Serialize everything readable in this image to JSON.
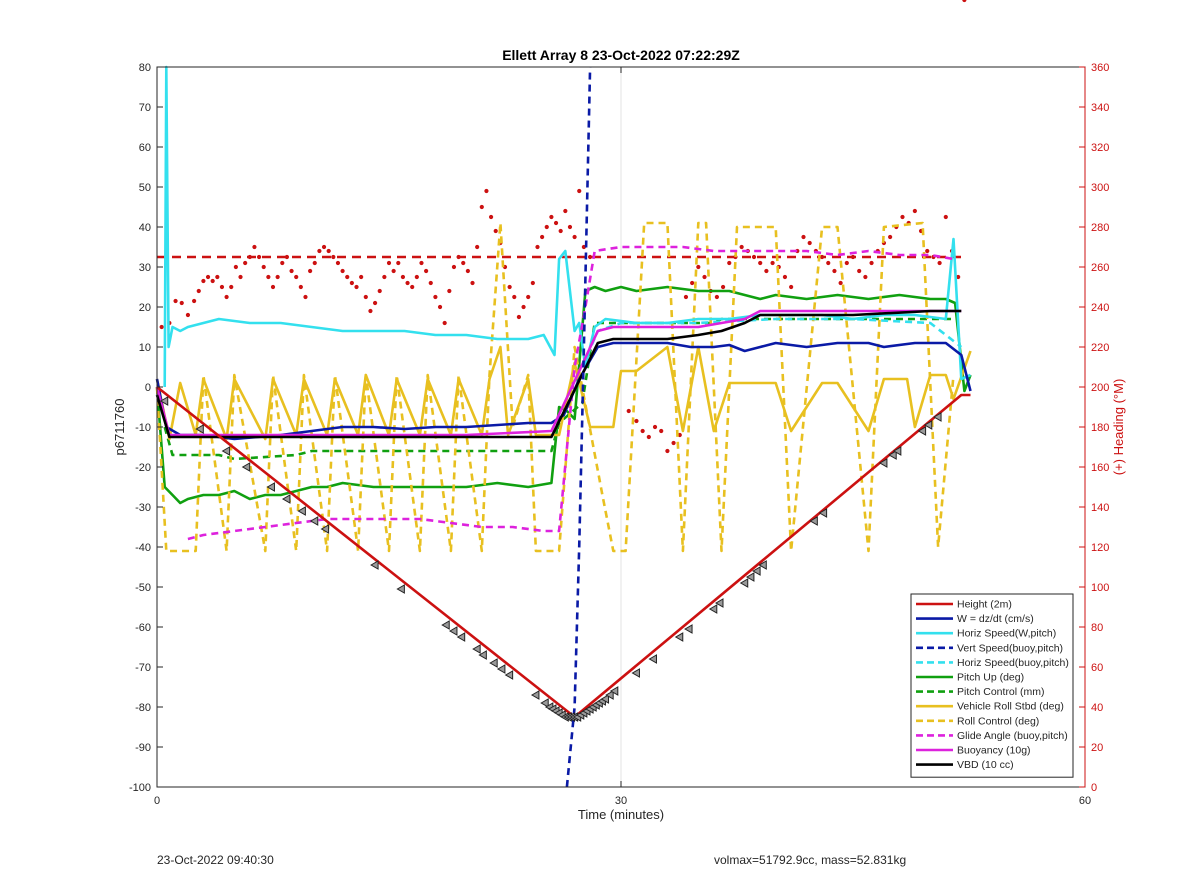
{
  "chart_data": {
    "type": "line",
    "title": "Ellett Array 8 23-Oct-2022 07:22:29Z",
    "xlabel": "Time (minutes)",
    "ylabel": "p6711760",
    "ylabel_right": "(+) Heading (°M)",
    "xlim": [
      0,
      60
    ],
    "ylim": [
      -100,
      80
    ],
    "ylim_right": [
      0,
      360
    ],
    "x_ticks": [
      0,
      30,
      60
    ],
    "y_ticks": [
      -100,
      -90,
      -80,
      -70,
      -60,
      -50,
      -40,
      -30,
      -20,
      -10,
      0,
      10,
      20,
      30,
      40,
      50,
      60,
      70,
      80
    ],
    "y_ticks_right": [
      0,
      20,
      40,
      60,
      80,
      100,
      120,
      140,
      160,
      180,
      200,
      220,
      240,
      260,
      280,
      300,
      320,
      340,
      360
    ],
    "grid": "x-only",
    "legend_position": "bottom-right",
    "series": [
      {
        "name": "Height (2m)",
        "color": "#cc1111",
        "style": "solid",
        "x": [
          0,
          27,
          52,
          52.6
        ],
        "y": [
          0,
          -82.5,
          -2,
          -2
        ]
      },
      {
        "name": "W = dz/dt (cm/s)",
        "color": "#0a1aa6",
        "style": "solid",
        "x": [
          0,
          0.6,
          1.5,
          3,
          5,
          8,
          10,
          12,
          14,
          16,
          18,
          20,
          22,
          24,
          25.5,
          26.3,
          27.3,
          28.5,
          29.5,
          31,
          33,
          34.5,
          36,
          37,
          38,
          39,
          40,
          42,
          44,
          46,
          47,
          49,
          51,
          52,
          52.6
        ],
        "y": [
          2,
          -10,
          -12,
          -12,
          -13,
          -12,
          -11,
          -10,
          -10,
          -10.5,
          -10,
          -10,
          -9.5,
          -9,
          -9,
          -7,
          2,
          10,
          11,
          11,
          11,
          10,
          10,
          10.5,
          9,
          10,
          11,
          10,
          11,
          11,
          10,
          11,
          11,
          8,
          -1
        ]
      },
      {
        "name": "Horiz Speed(W,pitch)",
        "color": "#33e0ee",
        "style": "solid",
        "x": [
          0.5,
          0.6,
          0.75,
          1,
          1.5,
          2,
          3,
          4,
          6,
          8,
          10,
          12,
          14,
          16,
          18,
          20,
          22,
          24,
          25,
          25.7,
          26,
          26.4,
          27,
          27.3,
          27.7,
          28.3,
          29,
          31,
          33,
          35,
          37,
          39,
          41,
          43,
          45,
          47,
          49,
          51,
          51.5,
          52,
          52.6
        ],
        "y": [
          0,
          80,
          10,
          15,
          14,
          15,
          16,
          17,
          16,
          16,
          15,
          14,
          14,
          14,
          13,
          13,
          12,
          12,
          13,
          8,
          32,
          34,
          14,
          16,
          5,
          15,
          17,
          16,
          16,
          17,
          17,
          18,
          18,
          18,
          17,
          18,
          18,
          17,
          37,
          2,
          3
        ]
      },
      {
        "name": "Vert Speed(buoy,pitch)",
        "color": "#0a1aa6",
        "style": "dashed",
        "x": [
          26.5,
          27,
          27.3,
          27.6,
          28
        ],
        "y": [
          -100,
          -80,
          -40,
          10,
          80
        ]
      },
      {
        "name": "Horiz Speed(buoy,pitch)",
        "color": "#33e0ee",
        "style": "dashed",
        "x": [
          27.5,
          28.5,
          30,
          35,
          40,
          45,
          50,
          52
        ],
        "y": [
          5,
          14,
          16,
          16,
          17,
          17,
          16,
          10
        ]
      },
      {
        "name": "Pitch Up (deg)",
        "color": "#10a010",
        "style": "solid",
        "x": [
          0,
          0.5,
          1,
          1.5,
          2,
          3,
          4,
          5,
          6,
          7,
          8,
          9,
          10,
          11,
          12,
          14,
          16,
          18,
          20,
          22,
          24,
          25.5,
          26,
          26.5,
          27,
          27.7,
          28.3,
          29,
          30,
          31,
          33,
          35,
          37,
          38,
          39,
          40,
          42,
          44,
          46,
          48,
          50,
          51,
          51.6,
          52.2,
          52.6
        ],
        "y": [
          0,
          -25,
          -27,
          -29,
          -28,
          -27,
          -27,
          -26,
          -28,
          -27,
          -27,
          -26,
          -25,
          -25,
          -24,
          -25,
          -25,
          -25,
          -25,
          -24,
          -25,
          -24,
          -5,
          -6,
          -8,
          24,
          25,
          24,
          25,
          24,
          25,
          24,
          24,
          23,
          22,
          23,
          22,
          23,
          22,
          23,
          22,
          22,
          21,
          -1,
          3
        ]
      },
      {
        "name": "Pitch Control (mm)",
        "color": "#10a010",
        "style": "dashed",
        "x": [
          0.5,
          1,
          4,
          5,
          9,
          10,
          25.5,
          26,
          27.5,
          28.3,
          36,
          36.5,
          51.5
        ],
        "y": [
          -10,
          -17,
          -17,
          -18,
          -17,
          -16,
          -16,
          -9,
          -4,
          16,
          16,
          17,
          17
        ]
      },
      {
        "name": "Vehicle Roll Stbd (deg)",
        "color": "#e8c020",
        "style": "solid",
        "x": [
          0,
          0.8,
          1.5,
          2.5,
          3,
          4.5,
          5,
          7,
          7.5,
          9,
          9.5,
          11,
          11.5,
          13,
          13.5,
          15,
          15.5,
          17,
          17.5,
          19,
          19.5,
          21,
          21.5,
          22.2,
          22.7,
          24,
          24.5,
          26,
          27,
          28,
          29.5,
          30,
          31,
          33,
          34,
          35,
          36,
          37,
          38,
          40,
          41,
          43,
          44,
          46,
          47,
          48.5,
          49,
          50,
          51,
          51.5,
          52.6
        ],
        "y": [
          2,
          -13,
          1,
          -12,
          2,
          -13,
          2,
          -13,
          2,
          -12,
          2,
          -12,
          2,
          -12,
          3,
          -12,
          2,
          -12,
          2,
          -12,
          2,
          -12,
          2,
          10,
          -12,
          2,
          -12,
          -12,
          6,
          -10,
          -10,
          4,
          4,
          10,
          -11,
          10,
          -11,
          1,
          1,
          1,
          -11,
          1,
          1,
          -11,
          2,
          2,
          -10,
          3,
          3,
          -3,
          9
        ]
      },
      {
        "name": "Roll Control (deg)",
        "color": "#e8c020",
        "style": "dashed",
        "x": [
          0,
          0.6,
          0.9,
          2.5,
          3,
          4.5,
          5,
          7,
          7.5,
          9,
          9.5,
          11,
          11.5,
          13,
          13.5,
          15,
          15.5,
          17,
          17.5,
          19,
          19.5,
          21,
          21.5,
          22.2,
          23,
          24,
          24.5,
          26,
          27,
          28.8,
          29.5,
          30.3,
          31.5,
          33,
          34,
          35,
          35.5,
          36.5,
          37.5,
          40,
          41,
          43,
          44,
          46,
          47,
          49.5,
          50.5,
          51.5
        ],
        "y": [
          0,
          -41,
          -41,
          -41,
          3,
          -41,
          3,
          -41,
          3,
          -41,
          3,
          -41,
          3,
          -41,
          3,
          -41,
          3,
          -41,
          3,
          -41,
          3,
          -41,
          3,
          41,
          -10,
          3,
          -41,
          -41,
          10,
          -27,
          -41,
          -41,
          41,
          41,
          -41,
          41,
          41,
          -41,
          40,
          40,
          -41,
          40,
          40,
          -41,
          40,
          41,
          -40,
          3
        ]
      },
      {
        "name": "Glide Angle (buoy,pitch)",
        "color": "#dd22dd",
        "style": "dashed",
        "x": [
          2,
          3,
          5,
          7,
          9,
          11,
          13,
          15,
          17,
          19,
          21,
          23,
          25,
          26,
          27,
          27.7,
          28.3,
          30,
          32,
          34,
          36,
          38,
          40,
          42,
          44,
          46,
          48,
          50,
          51.5
        ],
        "y": [
          -38,
          -37,
          -36,
          -35,
          -34,
          -33,
          -33,
          -33,
          -33,
          -34,
          -35,
          -35,
          -36,
          -36,
          5,
          20,
          34,
          35,
          35,
          35,
          34,
          34,
          34,
          34,
          33,
          34,
          33,
          33,
          32
        ]
      },
      {
        "name": "Buoyancy (10g)",
        "color": "#dd22dd",
        "style": "solid",
        "x": [
          0,
          0.8,
          10,
          20,
          25.5,
          28.5,
          29.5,
          33,
          35,
          36.5,
          38,
          39,
          41,
          45,
          50,
          52
        ],
        "y": [
          0,
          -12,
          -12,
          -12,
          -11,
          14,
          15,
          15,
          15,
          16,
          17,
          19,
          19,
          19,
          19,
          19
        ]
      },
      {
        "name": "VBD (10 cc)",
        "color": "#000000",
        "style": "solid",
        "x": [
          0,
          0.8,
          25.5,
          28.5,
          29.5,
          33,
          35,
          36.5,
          38,
          39,
          41,
          45,
          50,
          52
        ],
        "y": [
          -2,
          -12.5,
          -12.5,
          11,
          12,
          12,
          13,
          14,
          16,
          18,
          18,
          18,
          19,
          19
        ]
      }
    ],
    "heading_reference": {
      "y_right": 265,
      "color": "#cc1111",
      "style": "dashed"
    },
    "heading_points": {
      "color": "#cc1111",
      "x": [
        0.3,
        0.8,
        1.2,
        1.6,
        2.0,
        2.4,
        2.7,
        3.0,
        3.3,
        3.6,
        3.9,
        4.2,
        4.5,
        4.8,
        5.1,
        5.4,
        5.7,
        6.0,
        6.3,
        6.6,
        6.9,
        7.2,
        7.5,
        7.8,
        8.1,
        8.4,
        8.7,
        9.0,
        9.3,
        9.6,
        9.9,
        10.2,
        10.5,
        10.8,
        11.1,
        11.4,
        11.7,
        12.0,
        12.3,
        12.6,
        12.9,
        13.2,
        13.5,
        13.8,
        14.1,
        14.4,
        14.7,
        15.0,
        15.3,
        15.6,
        15.9,
        16.2,
        16.5,
        16.8,
        17.1,
        17.4,
        17.7,
        18.0,
        18.3,
        18.6,
        18.9,
        19.2,
        19.5,
        19.8,
        20.1,
        20.4,
        20.7,
        21.0,
        21.3,
        21.6,
        21.9,
        22.2,
        22.5,
        22.8,
        23.1,
        23.4,
        23.7,
        24.0,
        24.3,
        24.6,
        24.9,
        25.2,
        25.5,
        25.8,
        26.1,
        26.4,
        26.7,
        27.0,
        27.3,
        27.6,
        28.0,
        30.5,
        31.0,
        31.4,
        31.8,
        32.2,
        32.6,
        33.0,
        33.4,
        33.8,
        34.2,
        34.6,
        35.0,
        35.4,
        35.8,
        36.2,
        36.6,
        37.0,
        37.4,
        37.8,
        38.2,
        38.6,
        39.0,
        39.4,
        39.8,
        40.2,
        40.6,
        41.0,
        41.4,
        41.8,
        42.2,
        42.6,
        43.0,
        43.4,
        43.8,
        44.2,
        44.6,
        45.0,
        45.4,
        45.8,
        46.2,
        46.6,
        47.0,
        47.4,
        47.8,
        48.2,
        48.6,
        49.0,
        49.4,
        49.8,
        50.2,
        50.6,
        51.0,
        51.4,
        51.8,
        52.2
      ],
      "y_right": [
        230,
        232,
        243,
        242,
        236,
        243,
        248,
        253,
        255,
        253,
        255,
        250,
        245,
        250,
        260,
        255,
        262,
        265,
        270,
        265,
        260,
        255,
        250,
        255,
        262,
        265,
        258,
        255,
        250,
        245,
        258,
        262,
        268,
        270,
        268,
        265,
        262,
        258,
        255,
        252,
        250,
        255,
        245,
        238,
        242,
        248,
        255,
        262,
        258,
        262,
        255,
        252,
        250,
        255,
        262,
        258,
        252,
        245,
        240,
        232,
        248,
        260,
        265,
        262,
        258,
        252,
        270,
        290,
        298,
        285,
        278,
        272,
        260,
        250,
        245,
        235,
        240,
        245,
        252,
        270,
        275,
        280,
        285,
        282,
        278,
        288,
        280,
        275,
        298,
        270,
        265,
        188,
        183,
        178,
        175,
        180,
        178,
        168,
        172,
        176,
        245,
        252,
        260,
        255,
        248,
        245,
        250,
        262,
        265,
        270,
        268,
        265,
        262,
        258,
        262,
        260,
        255,
        250,
        268,
        275,
        272,
        268,
        265,
        262,
        258,
        252,
        262,
        265,
        258,
        255,
        262,
        268,
        272,
        275,
        280,
        285,
        282,
        288,
        278,
        268,
        265,
        262,
        285,
        268,
        255
      ]
    },
    "height_markers": {
      "color": "#222222",
      "x": [
        0.5,
        2.8,
        4.5,
        5.8,
        7.4,
        8.4,
        9.4,
        10.2,
        10.9,
        14.1,
        15.8,
        18.7,
        19.2,
        19.7,
        20.7,
        21.1,
        21.8,
        22.3,
        22.8,
        24.5,
        25.1,
        25.4,
        25.6,
        25.8,
        26.0,
        26.2,
        26.4,
        26.6,
        26.8,
        27.0,
        27.2,
        27.4,
        27.6,
        27.8,
        28.0,
        28.2,
        28.4,
        28.6,
        28.8,
        29.0,
        29.3,
        29.6,
        31.0,
        32.1,
        33.8,
        34.4,
        36.0,
        36.4,
        38.0,
        38.4,
        38.8,
        39.2,
        42.5,
        43.1,
        47.0,
        47.6,
        47.9,
        49.5,
        49.9,
        50.5
      ],
      "y": [
        -3.5,
        -10.5,
        -16,
        -20,
        -25,
        -28,
        -31,
        -33.5,
        -35.5,
        -44.5,
        -50.5,
        -59.5,
        -61,
        -62.5,
        -65.5,
        -67,
        -69,
        -70.5,
        -72,
        -77,
        -79,
        -80,
        -80.5,
        -81,
        -81.5,
        -82,
        -82.5,
        -82.5,
        -82.5,
        -82.5,
        -82.5,
        -82,
        -81.5,
        -81,
        -80.5,
        -80,
        -79.5,
        -79,
        -78.5,
        -78,
        -77,
        -76,
        -71.5,
        -68,
        -62.5,
        -60.5,
        -55.5,
        -54,
        -49,
        -47.5,
        -46,
        -44.5,
        -33.5,
        -31.5,
        -19,
        -17,
        -16,
        -11,
        -9.5,
        -7.5
      ]
    }
  },
  "footer": {
    "timestamp": "23-Oct-2022 09:40:30",
    "volume_mass": "volmax=51792.9cc, mass=52.831kg"
  }
}
